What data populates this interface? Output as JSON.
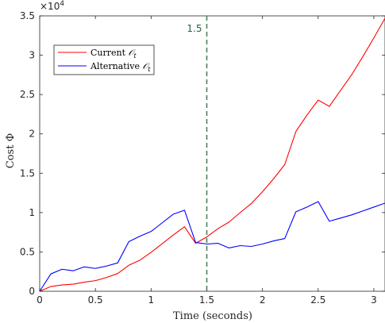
{
  "chart_data": {
    "type": "line",
    "xlabel": "Time (seconds)",
    "ylabel": "Cost Φ",
    "xlim": [
      0,
      3.1
    ],
    "ylim": [
      0,
      35000
    ],
    "y_exponent_label": "×10",
    "y_exponent_power": "4",
    "x_ticks": [
      {
        "value": 0,
        "label": "0"
      },
      {
        "value": 0.5,
        "label": "0.5"
      },
      {
        "value": 1,
        "label": "1"
      },
      {
        "value": 1.5,
        "label": "1.5"
      },
      {
        "value": 2,
        "label": "2"
      },
      {
        "value": 2.5,
        "label": "2.5"
      },
      {
        "value": 3,
        "label": "3"
      }
    ],
    "y_ticks": [
      {
        "value": 0,
        "label": "0"
      },
      {
        "value": 5000,
        "label": "0.5"
      },
      {
        "value": 10000,
        "label": "1"
      },
      {
        "value": 15000,
        "label": "1.5"
      },
      {
        "value": 20000,
        "label": "2"
      },
      {
        "value": 25000,
        "label": "2.5"
      },
      {
        "value": 30000,
        "label": "3"
      },
      {
        "value": 35000,
        "label": "3.5"
      }
    ],
    "legend_placement": "top-left",
    "grid": false,
    "annotations": [
      {
        "type": "vertical-dashed-line",
        "x": 1.5,
        "label": "1.5",
        "color": "#4f7f5f"
      }
    ],
    "series": [
      {
        "name": "Current",
        "name_suffix": "𝒪",
        "name_subscript": "t",
        "color": "#ff0000",
        "x": [
          0,
          0.1,
          0.2,
          0.3,
          0.4,
          0.5,
          0.6,
          0.7,
          0.8,
          0.9,
          1.0,
          1.1,
          1.2,
          1.3,
          1.4,
          1.5,
          1.6,
          1.7,
          1.8,
          1.9,
          2.0,
          2.1,
          2.2,
          2.3,
          2.4,
          2.5,
          2.6,
          2.7,
          2.8,
          2.9,
          3.0,
          3.1
        ],
        "y": [
          0,
          600,
          800,
          900,
          1150,
          1350,
          1750,
          2250,
          3300,
          3950,
          4950,
          6050,
          7150,
          8200,
          6100,
          6900,
          7950,
          8800,
          10000,
          11150,
          12650,
          14300,
          16100,
          20300,
          22400,
          24300,
          23500,
          25500,
          27500,
          29800,
          32200,
          34700
        ]
      },
      {
        "name": "Alternative",
        "name_suffix": "𝒪",
        "name_subscript": "t",
        "color": "#0000ff",
        "x": [
          0,
          0.1,
          0.2,
          0.3,
          0.4,
          0.5,
          0.6,
          0.7,
          0.8,
          0.9,
          1.0,
          1.1,
          1.2,
          1.3,
          1.4,
          1.5,
          1.6,
          1.7,
          1.8,
          1.9,
          2.0,
          2.1,
          2.2,
          2.3,
          2.4,
          2.5,
          2.6,
          2.7,
          2.8,
          2.9,
          3.0,
          3.1
        ],
        "y": [
          0,
          2200,
          2800,
          2600,
          3100,
          2900,
          3200,
          3600,
          6300,
          7000,
          7600,
          8700,
          9800,
          10300,
          6200,
          6000,
          6100,
          5500,
          5800,
          5700,
          6000,
          6400,
          6700,
          10100,
          10700,
          11400,
          8900,
          9300,
          9700,
          10200,
          10700,
          11200
        ]
      }
    ]
  }
}
